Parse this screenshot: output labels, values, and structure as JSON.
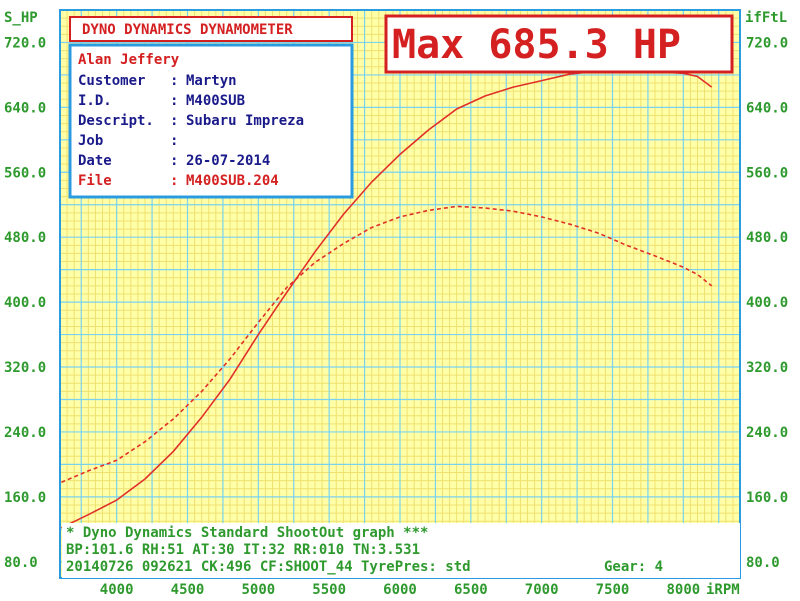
{
  "header": {
    "banner": "DYNO DYNAMICS DYNAMOMETER",
    "max": "Max 685.3 HP"
  },
  "info": {
    "operator": "Alan Jeffery",
    "rows": [
      {
        "key": "Customer",
        "sep": ":",
        "value": "Martyn"
      },
      {
        "key": "I.D.",
        "sep": ":",
        "value": "M400SUB"
      },
      {
        "key": "Descript.",
        "sep": ":",
        "value": "Subaru Impreza"
      },
      {
        "key": "Job",
        "sep": ":",
        "value": ""
      },
      {
        "key": "Date",
        "sep": ":",
        "value": "26-07-2014"
      },
      {
        "key": "File",
        "sep": ":",
        "value": "M400SUB.204"
      }
    ]
  },
  "footer": {
    "line1": "* Dyno Dynamics Standard ShootOut graph ***",
    "line2": "BP:101.6 RH:51 AT:30 IT:32  RR:010 TN:3.531",
    "line3": "20140726 092621 CK:496 CF:SHOOT_44 TyrePres: std",
    "gear": "Gear: 4"
  },
  "colors": {
    "plot_bg": "#ffffa8",
    "grid_major": "#7ad2ee",
    "grid_minor": "#efe070",
    "frame": "#2a9be0",
    "curve": "#e0302a",
    "text_green": "#2e9a2e",
    "text_red": "#d42020",
    "text_blue": "#1a1a8a"
  },
  "chart_data": {
    "type": "line",
    "ylabel_left": "S_HP",
    "ylabel_right": "ifFtL",
    "xlabel": "iRPM",
    "xlim": [
      3600,
      8400
    ],
    "ylim": [
      60,
      760
    ],
    "x_ticks": [
      "4000",
      "4500",
      "5000",
      "5500",
      "6000",
      "6500",
      "7000",
      "7500",
      "8000"
    ],
    "y_ticks_left": [
      "80.0",
      "160.0",
      "240.0",
      "320.0",
      "400.0",
      "480.0",
      "560.0",
      "640.0",
      "720.0"
    ],
    "y_ticks_right": [
      "80.0",
      "160.0",
      "240.0",
      "320.0",
      "400.0",
      "480.0",
      "560.0",
      "640.0",
      "720.0"
    ],
    "grid": true,
    "series": [
      {
        "style": "solid",
        "points": [
          [
            3610,
            122
          ],
          [
            3800,
            138
          ],
          [
            4000,
            156
          ],
          [
            4200,
            182
          ],
          [
            4400,
            216
          ],
          [
            4600,
            258
          ],
          [
            4800,
            305
          ],
          [
            5000,
            360
          ],
          [
            5200,
            412
          ],
          [
            5400,
            462
          ],
          [
            5600,
            508
          ],
          [
            5800,
            548
          ],
          [
            6000,
            582
          ],
          [
            6200,
            612
          ],
          [
            6400,
            638
          ],
          [
            6600,
            654
          ],
          [
            6800,
            665
          ],
          [
            7000,
            673
          ],
          [
            7200,
            681
          ],
          [
            7400,
            685
          ],
          [
            7600,
            685.3
          ],
          [
            7800,
            684
          ],
          [
            8000,
            682
          ],
          [
            8100,
            678
          ],
          [
            8200,
            665
          ]
        ]
      },
      {
        "style": "dashed",
        "points": [
          [
            3610,
            178
          ],
          [
            3800,
            192
          ],
          [
            4000,
            205
          ],
          [
            4200,
            228
          ],
          [
            4400,
            256
          ],
          [
            4600,
            290
          ],
          [
            4800,
            330
          ],
          [
            5000,
            375
          ],
          [
            5200,
            418
          ],
          [
            5400,
            449
          ],
          [
            5600,
            472
          ],
          [
            5800,
            492
          ],
          [
            6000,
            505
          ],
          [
            6200,
            513
          ],
          [
            6400,
            518
          ],
          [
            6600,
            516
          ],
          [
            6800,
            512
          ],
          [
            7000,
            505
          ],
          [
            7200,
            496
          ],
          [
            7400,
            485
          ],
          [
            7600,
            470
          ],
          [
            7800,
            457
          ],
          [
            8000,
            443
          ],
          [
            8100,
            434
          ],
          [
            8200,
            420
          ]
        ]
      }
    ]
  }
}
